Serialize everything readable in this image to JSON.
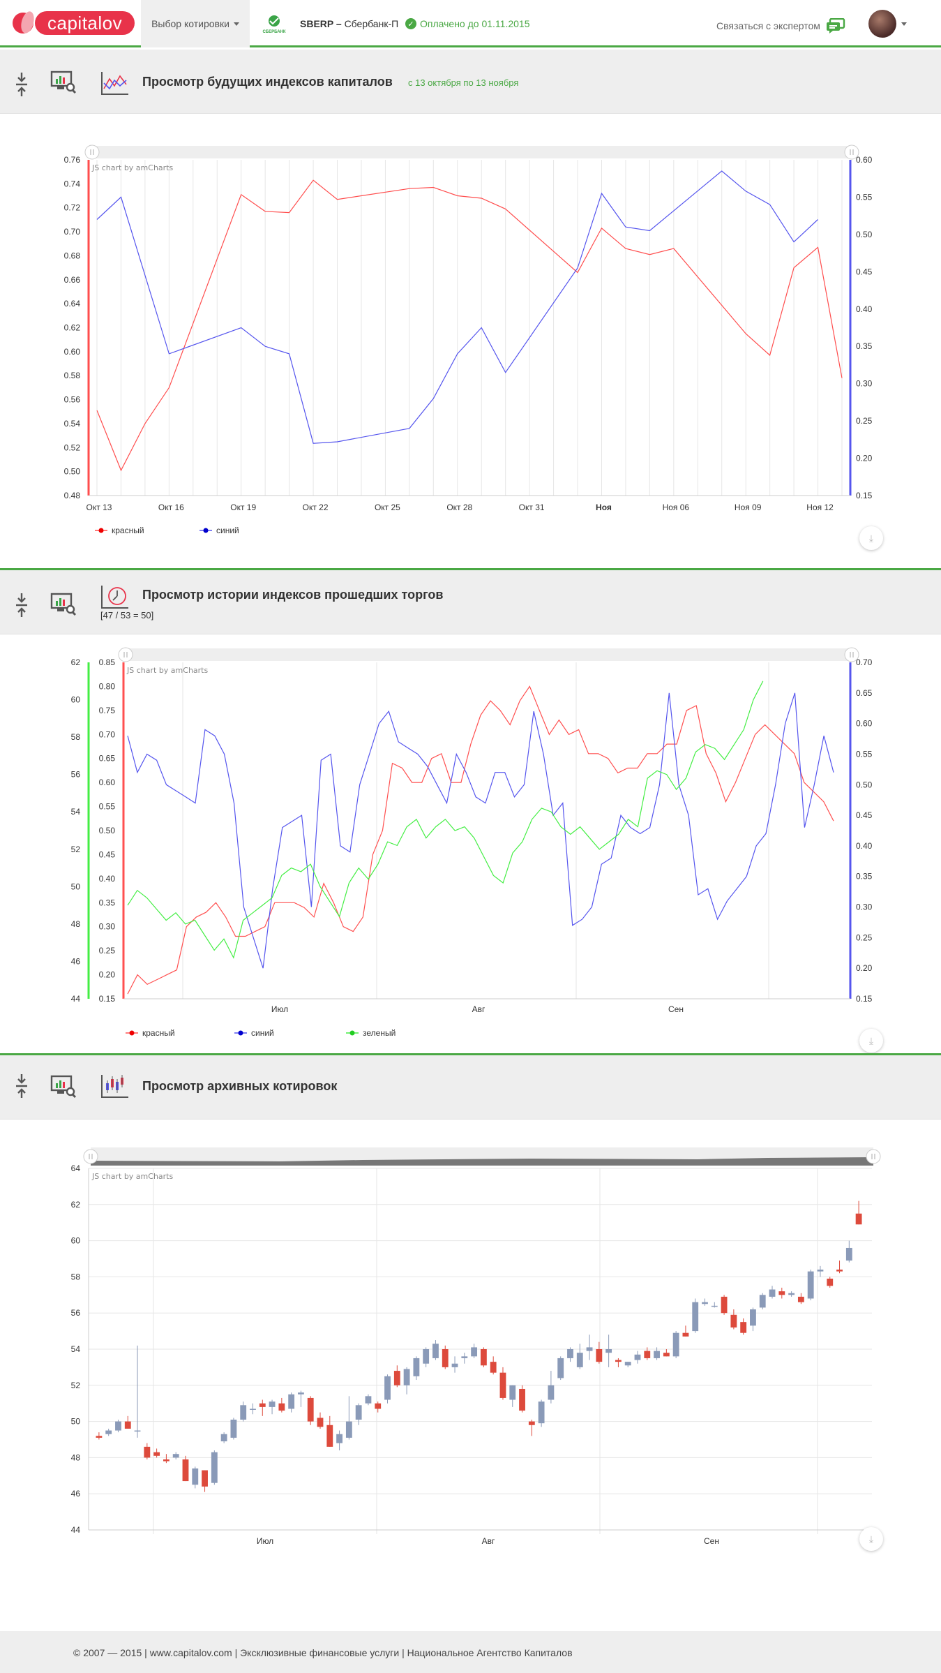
{
  "header": {
    "logo_text": "capitalov",
    "quote_select_label": "Выбор котировки",
    "bank_logo_text": "СБЕРБАНК",
    "ticker_code": "SBERP –",
    "ticker_name": "Сбербанк-П",
    "paid_status": "Оплачено до 01.11.2015",
    "contact_label": "Связаться с экспертом"
  },
  "sections": [
    {
      "title": "Просмотр будущих индексов капиталов",
      "subtitle": "с 13 октября по 13 ноября"
    },
    {
      "title": "Просмотр истории индексов прошедших торгов",
      "note": "[47 / 53 = 50]"
    },
    {
      "title": "Просмотр архивных котировок"
    }
  ],
  "chart_data": [
    {
      "type": "line",
      "credit": "JS chart by amCharts",
      "x_labels": [
        "Окт 13",
        "Окт 16",
        "Окт 19",
        "Окт 22",
        "Окт 25",
        "Окт 28",
        "Окт 31",
        "Ноя",
        "Ноя 06",
        "Ноя 09",
        "Ноя 12"
      ],
      "x_bold": "Ноя",
      "left_axis": {
        "min": 0.48,
        "max": 0.76,
        "step": 0.02
      },
      "right_axis": {
        "min": 0.15,
        "max": 0.6,
        "step": 0.05
      },
      "x_range": [
        0,
        31
      ],
      "series": [
        {
          "name": "красный",
          "color": "#ff4d4d",
          "axis": "left",
          "points": [
            [
              0,
              0.551
            ],
            [
              1,
              0.501
            ],
            [
              2,
              0.54
            ],
            [
              3,
              0.57
            ],
            [
              6,
              0.731
            ],
            [
              7,
              0.717
            ],
            [
              8,
              0.716
            ],
            [
              9,
              0.743
            ],
            [
              10,
              0.727
            ],
            [
              13,
              0.736
            ],
            [
              14,
              0.737
            ],
            [
              15,
              0.73
            ],
            [
              16,
              0.728
            ],
            [
              17,
              0.719
            ],
            [
              20,
              0.666
            ],
            [
              21,
              0.703
            ],
            [
              22,
              0.686
            ],
            [
              23,
              0.681
            ],
            [
              24,
              0.686
            ],
            [
              27,
              0.615
            ],
            [
              28,
              0.597
            ],
            [
              29,
              0.67
            ],
            [
              30,
              0.687
            ],
            [
              31,
              0.578
            ]
          ]
        },
        {
          "name": "синий",
          "color": "#5555ee",
          "axis": "right",
          "points": [
            [
              0,
              0.52
            ],
            [
              1,
              0.55
            ],
            [
              3,
              0.34
            ],
            [
              6,
              0.375
            ],
            [
              7,
              0.35
            ],
            [
              8,
              0.34
            ],
            [
              9,
              0.22
            ],
            [
              10,
              0.222
            ],
            [
              13,
              0.24
            ],
            [
              14,
              0.28
            ],
            [
              15,
              0.34
            ],
            [
              16,
              0.375
            ],
            [
              17,
              0.315
            ],
            [
              20,
              0.455
            ],
            [
              21,
              0.555
            ],
            [
              22,
              0.51
            ],
            [
              23,
              0.505
            ],
            [
              26,
              0.585
            ],
            [
              27,
              0.558
            ],
            [
              28,
              0.54
            ],
            [
              29,
              0.49
            ],
            [
              30,
              0.52
            ]
          ]
        }
      ],
      "legend": [
        "красный",
        "синий"
      ]
    },
    {
      "type": "line",
      "credit": "JS chart by amCharts",
      "x_labels": [
        "Июл",
        "Авг",
        "Сен"
      ],
      "left_axis_outer": {
        "min": 44,
        "max": 62,
        "step": 2
      },
      "left_axis_inner": {
        "min": 0.15,
        "max": 0.85,
        "step": 0.05
      },
      "right_axis": {
        "min": 0.15,
        "max": 0.7,
        "step": 0.05
      },
      "x_range": [
        0,
        100
      ],
      "series": [
        {
          "name": "красный",
          "color": "#ff5050",
          "axis": "left_inner",
          "values": [
            0.16,
            0.2,
            0.18,
            0.19,
            0.2,
            0.21,
            0.3,
            0.32,
            0.33,
            0.35,
            0.32,
            0.28,
            0.28,
            0.29,
            0.3,
            0.35,
            0.35,
            0.35,
            0.34,
            0.32,
            0.39,
            0.35,
            0.3,
            0.29,
            0.32,
            0.45,
            0.5,
            0.64,
            0.63,
            0.6,
            0.6,
            0.65,
            0.66,
            0.6,
            0.6,
            0.68,
            0.74,
            0.77,
            0.75,
            0.72,
            0.77,
            0.8,
            0.75,
            0.7,
            0.73,
            0.7,
            0.71,
            0.66,
            0.66,
            0.65,
            0.62,
            0.63,
            0.63,
            0.66,
            0.66,
            0.68,
            0.68,
            0.75,
            0.76,
            0.66,
            0.62,
            0.56,
            0.6,
            0.65,
            0.7,
            0.72,
            0.7,
            0.68,
            0.66,
            0.6,
            0.58,
            0.56,
            0.52
          ],
          "x_step": 1.37
        },
        {
          "name": "синий",
          "color": "#5555ee",
          "axis": "right",
          "values": [
            0.58,
            0.52,
            0.55,
            0.54,
            0.5,
            0.49,
            0.48,
            0.47,
            0.59,
            0.58,
            0.55,
            0.47,
            0.3,
            0.25,
            0.2,
            0.33,
            0.43,
            0.44,
            0.45,
            0.3,
            0.54,
            0.55,
            0.4,
            0.39,
            0.5,
            0.55,
            0.6,
            0.62,
            0.57,
            0.56,
            0.55,
            0.53,
            0.5,
            0.47,
            0.55,
            0.52,
            0.48,
            0.47,
            0.52,
            0.52,
            0.48,
            0.5,
            0.62,
            0.55,
            0.45,
            0.47,
            0.27,
            0.28,
            0.3,
            0.37,
            0.38,
            0.45,
            0.43,
            0.42,
            0.43,
            0.5,
            0.65,
            0.5,
            0.45,
            0.32,
            0.33,
            0.28,
            0.31,
            0.33,
            0.35,
            0.4,
            0.42,
            0.5,
            0.6,
            0.65,
            0.43,
            0.5,
            0.58,
            0.52
          ],
          "x_step": 1.35
        },
        {
          "name": "зеленый",
          "color": "#44ee44",
          "axis": "left_outer",
          "values": [
            49,
            49.8,
            49.4,
            48.8,
            48.2,
            48.6,
            48,
            48.2,
            47.4,
            46.6,
            47.2,
            46.2,
            48.2,
            48.6,
            49,
            49.4,
            50.6,
            51,
            50.8,
            51.2,
            50,
            49.2,
            48.4,
            50.2,
            51,
            50.4,
            51.2,
            52.4,
            52.2,
            53.2,
            53.6,
            52.6,
            53.2,
            53.6,
            53,
            53.2,
            52.6,
            51.6,
            50.6,
            50.2,
            51.8,
            52.4,
            53.6,
            54.2,
            54,
            53.2,
            52.8,
            53.2,
            52.6,
            52,
            52.4,
            52.8,
            53.6,
            53.2,
            55.8,
            56.2,
            56,
            55.2,
            55.8,
            57.2,
            57.6,
            57.4,
            56.8,
            57.6,
            58.4,
            60,
            61
          ],
          "x_step": 1.5
        }
      ],
      "legend": [
        "красный",
        "синий",
        "зеленый"
      ]
    },
    {
      "type": "candlestick",
      "credit": "JS chart by amCharts",
      "x_labels": [
        "Июл",
        "Авг",
        "Сен"
      ],
      "y_axis": {
        "min": 44,
        "max": 64,
        "step": 2
      },
      "up_color": "#8a9ab8",
      "down_color": "#dd4a3c",
      "candles": [
        [
          49.2,
          49.4,
          49.0,
          49.1
        ],
        [
          49.3,
          49.6,
          49.2,
          49.5
        ],
        [
          49.5,
          50.1,
          49.4,
          50.0
        ],
        [
          50.0,
          50.3,
          49.6,
          49.6
        ],
        [
          49.5,
          54.2,
          49.1,
          49.5
        ],
        [
          48.6,
          48.8,
          47.9,
          48.0
        ],
        [
          48.3,
          48.5,
          48.0,
          48.1
        ],
        [
          47.9,
          48.2,
          47.7,
          47.8
        ],
        [
          48.0,
          48.3,
          47.9,
          48.2
        ],
        [
          47.9,
          48.1,
          46.7,
          46.7
        ],
        [
          46.5,
          47.5,
          46.3,
          47.4
        ],
        [
          47.3,
          47.3,
          46.1,
          46.4
        ],
        [
          46.6,
          48.4,
          46.5,
          48.3
        ],
        [
          48.9,
          49.4,
          48.8,
          49.3
        ],
        [
          49.1,
          50.2,
          49.0,
          50.1
        ],
        [
          50.1,
          51.1,
          50.0,
          50.9
        ],
        [
          50.7,
          51.0,
          50.4,
          50.7
        ],
        [
          51.0,
          51.2,
          50.3,
          50.8
        ],
        [
          50.8,
          51.2,
          50.4,
          51.1
        ],
        [
          51.0,
          51.3,
          50.5,
          50.6
        ],
        [
          50.7,
          51.6,
          50.5,
          51.5
        ],
        [
          51.5,
          51.7,
          50.8,
          51.6
        ],
        [
          51.3,
          51.4,
          49.8,
          50.0
        ],
        [
          50.2,
          50.5,
          49.6,
          49.7
        ],
        [
          49.8,
          50.3,
          48.6,
          48.6
        ],
        [
          48.8,
          49.5,
          48.4,
          49.3
        ],
        [
          49.1,
          51.4,
          49.0,
          50.0
        ],
        [
          50.1,
          51.0,
          49.8,
          50.9
        ],
        [
          51.0,
          51.5,
          50.9,
          51.4
        ],
        [
          51.0,
          51.1,
          50.5,
          50.7
        ],
        [
          51.2,
          52.6,
          51.0,
          52.5
        ],
        [
          52.8,
          53.1,
          51.9,
          52.0
        ],
        [
          52.0,
          53.0,
          51.5,
          52.9
        ],
        [
          52.5,
          53.6,
          52.3,
          53.5
        ],
        [
          53.2,
          54.1,
          53.0,
          54.0
        ],
        [
          53.5,
          54.5,
          53.4,
          54.3
        ],
        [
          54.0,
          54.2,
          52.9,
          53.0
        ],
        [
          53.0,
          53.6,
          52.7,
          53.2
        ],
        [
          53.5,
          53.8,
          53.2,
          53.6
        ],
        [
          53.6,
          54.3,
          53.5,
          54.1
        ],
        [
          54.0,
          54.1,
          53.0,
          53.1
        ],
        [
          53.3,
          53.6,
          52.6,
          52.7
        ],
        [
          52.7,
          53.0,
          51.2,
          51.3
        ],
        [
          51.2,
          52.0,
          50.8,
          52.0
        ],
        [
          51.8,
          52.0,
          50.5,
          50.6
        ],
        [
          50.0,
          50.1,
          49.2,
          49.8
        ],
        [
          49.9,
          51.2,
          49.7,
          51.1
        ],
        [
          51.2,
          52.8,
          51.0,
          52.0
        ],
        [
          52.4,
          53.6,
          52.3,
          53.5
        ],
        [
          53.5,
          54.1,
          53.3,
          54.0
        ],
        [
          53.0,
          54.3,
          52.9,
          53.8
        ],
        [
          53.9,
          54.8,
          53.4,
          54.1
        ],
        [
          54.0,
          54.4,
          53.2,
          53.3
        ],
        [
          53.8,
          54.8,
          53.0,
          54.0
        ],
        [
          53.4,
          53.5,
          53.0,
          53.3
        ],
        [
          53.1,
          53.3,
          53.0,
          53.3
        ],
        [
          53.4,
          53.9,
          53.2,
          53.7
        ],
        [
          53.9,
          54.1,
          53.4,
          53.5
        ],
        [
          53.5,
          54.1,
          53.4,
          53.9
        ],
        [
          53.8,
          54.0,
          53.6,
          53.6
        ],
        [
          53.6,
          55.0,
          53.5,
          54.9
        ],
        [
          54.9,
          55.3,
          54.7,
          54.7
        ],
        [
          55.0,
          56.8,
          54.9,
          56.6
        ],
        [
          56.5,
          56.8,
          56.4,
          56.6
        ],
        [
          56.4,
          56.6,
          56.3,
          56.4
        ],
        [
          56.9,
          57.0,
          55.9,
          56.0
        ],
        [
          55.9,
          56.2,
          55.1,
          55.2
        ],
        [
          55.5,
          55.7,
          54.8,
          54.9
        ],
        [
          55.3,
          56.3,
          55.0,
          56.2
        ],
        [
          56.3,
          57.1,
          56.2,
          57.0
        ],
        [
          56.9,
          57.5,
          56.8,
          57.3
        ],
        [
          57.2,
          57.4,
          56.8,
          57.0
        ],
        [
          57.0,
          57.2,
          56.9,
          57.1
        ],
        [
          56.9,
          57.1,
          56.5,
          56.6
        ],
        [
          56.8,
          58.4,
          56.7,
          58.3
        ],
        [
          58.3,
          58.6,
          58.0,
          58.4
        ],
        [
          57.9,
          58.0,
          57.4,
          57.5
        ],
        [
          58.4,
          58.9,
          58.2,
          58.3
        ],
        [
          58.9,
          60.0,
          58.8,
          59.6
        ],
        [
          61.5,
          62.2,
          60.9,
          60.9
        ]
      ]
    }
  ],
  "footer": {
    "copyright": "© 2007 — 2015 | www.capitalov.com | Эксклюзивные финансовые услуги | Национальное Агентство Капиталов"
  },
  "icons": {
    "collapse": "collapse-arrows-icon",
    "monitor": "monitor-chart-icon",
    "line_chart": "line-chart-icon",
    "history": "history-chart-icon",
    "candles": "candlestick-icon",
    "download": "download-icon",
    "chat": "chat-icon",
    "check": "check-icon"
  },
  "colors": {
    "brand": "#e8334a",
    "accent_green": "#4aa844",
    "red_series": "#ff4d4d",
    "blue_series": "#5555ee",
    "green_series": "#44ee44"
  }
}
